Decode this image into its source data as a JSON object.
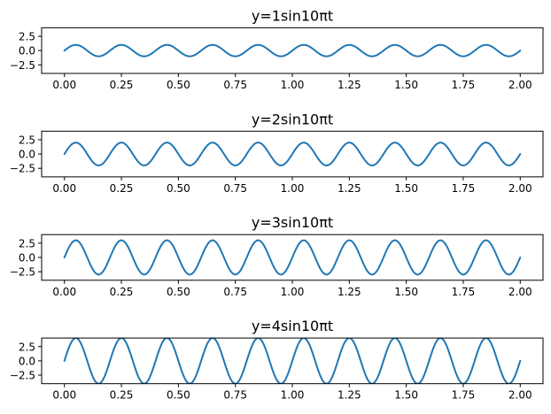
{
  "chart_data": [
    {
      "type": "line",
      "title": "y=1sin10πt",
      "series": [
        {
          "equation": "y = 1·sin(10πt)",
          "amplitude": 1,
          "angular_frequency": 31.4159,
          "x": [
            0,
            0.05,
            0.1,
            0.15,
            0.2,
            0.25,
            0.3,
            0.35,
            0.4,
            0.45,
            0.5,
            0.55,
            0.6,
            0.65,
            0.7,
            0.75,
            0.8,
            0.85,
            0.9,
            0.95,
            1.0,
            1.05,
            1.1,
            1.15,
            1.2,
            1.25,
            1.3,
            1.35,
            1.4,
            1.45,
            1.5,
            1.55,
            1.6,
            1.65,
            1.7,
            1.75,
            1.8,
            1.85,
            1.9,
            1.95,
            2.0
          ],
          "y": [
            0,
            1,
            0,
            -1,
            0,
            1,
            0,
            -1,
            0,
            1,
            0,
            -1,
            0,
            1,
            0,
            -1,
            0,
            1,
            0,
            -1,
            0,
            1,
            0,
            -1,
            0,
            1,
            0,
            -1,
            0,
            1,
            0,
            -1,
            0,
            1,
            0,
            -1,
            0,
            1,
            0,
            -1,
            0
          ],
          "color": "#1f77b4"
        }
      ],
      "xlim": [
        -0.1,
        2.1
      ],
      "ylim": [
        -4,
        4
      ],
      "xticks": [
        0.0,
        0.25,
        0.5,
        0.75,
        1.0,
        1.25,
        1.5,
        1.75,
        2.0
      ],
      "xtick_labels": [
        "0.00",
        "0.25",
        "0.50",
        "0.75",
        "1.00",
        "1.25",
        "1.50",
        "1.75",
        "2.00"
      ],
      "yticks": [
        2.5,
        0.0,
        -2.5
      ],
      "ytick_labels": [
        "2.5",
        "0.0",
        "−2.5"
      ],
      "grid": false,
      "xlabel": "",
      "ylabel": ""
    },
    {
      "type": "line",
      "title": "y=2sin10πt",
      "series": [
        {
          "equation": "y = 2·sin(10πt)",
          "amplitude": 2,
          "angular_frequency": 31.4159,
          "x": [
            0,
            0.05,
            0.1,
            0.15,
            0.2,
            0.25,
            0.3,
            0.35,
            0.4,
            0.45,
            0.5,
            0.55,
            0.6,
            0.65,
            0.7,
            0.75,
            0.8,
            0.85,
            0.9,
            0.95,
            1.0,
            1.05,
            1.1,
            1.15,
            1.2,
            1.25,
            1.3,
            1.35,
            1.4,
            1.45,
            1.5,
            1.55,
            1.6,
            1.65,
            1.7,
            1.75,
            1.8,
            1.85,
            1.9,
            1.95,
            2.0
          ],
          "y": [
            0,
            2,
            0,
            -2,
            0,
            2,
            0,
            -2,
            0,
            2,
            0,
            -2,
            0,
            2,
            0,
            -2,
            0,
            2,
            0,
            -2,
            0,
            2,
            0,
            -2,
            0,
            2,
            0,
            -2,
            0,
            2,
            0,
            -2,
            0,
            2,
            0,
            -2,
            0,
            2,
            0,
            -2,
            0
          ],
          "color": "#1f77b4"
        }
      ],
      "xlim": [
        -0.1,
        2.1
      ],
      "ylim": [
        -4,
        4
      ],
      "xticks": [
        0.0,
        0.25,
        0.5,
        0.75,
        1.0,
        1.25,
        1.5,
        1.75,
        2.0
      ],
      "xtick_labels": [
        "0.00",
        "0.25",
        "0.50",
        "0.75",
        "1.00",
        "1.25",
        "1.50",
        "1.75",
        "2.00"
      ],
      "yticks": [
        2.5,
        0.0,
        -2.5
      ],
      "ytick_labels": [
        "2.5",
        "0.0",
        "−2.5"
      ],
      "grid": false,
      "xlabel": "",
      "ylabel": ""
    },
    {
      "type": "line",
      "title": "y=3sin10πt",
      "series": [
        {
          "equation": "y = 3·sin(10πt)",
          "amplitude": 3,
          "angular_frequency": 31.4159,
          "x": [
            0,
            0.05,
            0.1,
            0.15,
            0.2,
            0.25,
            0.3,
            0.35,
            0.4,
            0.45,
            0.5,
            0.55,
            0.6,
            0.65,
            0.7,
            0.75,
            0.8,
            0.85,
            0.9,
            0.95,
            1.0,
            1.05,
            1.1,
            1.15,
            1.2,
            1.25,
            1.3,
            1.35,
            1.4,
            1.45,
            1.5,
            1.55,
            1.6,
            1.65,
            1.7,
            1.75,
            1.8,
            1.85,
            1.9,
            1.95,
            2.0
          ],
          "y": [
            0,
            3,
            0,
            -3,
            0,
            3,
            0,
            -3,
            0,
            3,
            0,
            -3,
            0,
            3,
            0,
            -3,
            0,
            3,
            0,
            -3,
            0,
            3,
            0,
            -3,
            0,
            3,
            0,
            -3,
            0,
            3,
            0,
            -3,
            0,
            3,
            0,
            -3,
            0,
            3,
            0,
            -3,
            0
          ],
          "color": "#1f77b4"
        }
      ],
      "xlim": [
        -0.1,
        2.1
      ],
      "ylim": [
        -4,
        4
      ],
      "xticks": [
        0.0,
        0.25,
        0.5,
        0.75,
        1.0,
        1.25,
        1.5,
        1.75,
        2.0
      ],
      "xtick_labels": [
        "0.00",
        "0.25",
        "0.50",
        "0.75",
        "1.00",
        "1.25",
        "1.50",
        "1.75",
        "2.00"
      ],
      "yticks": [
        2.5,
        0.0,
        -2.5
      ],
      "ytick_labels": [
        "2.5",
        "0.0",
        "−2.5"
      ],
      "grid": false,
      "xlabel": "",
      "ylabel": ""
    },
    {
      "type": "line",
      "title": "y=4sin10πt",
      "series": [
        {
          "equation": "y = 4·sin(10πt)",
          "amplitude": 4,
          "angular_frequency": 31.4159,
          "x": [
            0,
            0.05,
            0.1,
            0.15,
            0.2,
            0.25,
            0.3,
            0.35,
            0.4,
            0.45,
            0.5,
            0.55,
            0.6,
            0.65,
            0.7,
            0.75,
            0.8,
            0.85,
            0.9,
            0.95,
            1.0,
            1.05,
            1.1,
            1.15,
            1.2,
            1.25,
            1.3,
            1.35,
            1.4,
            1.45,
            1.5,
            1.55,
            1.6,
            1.65,
            1.7,
            1.75,
            1.8,
            1.85,
            1.9,
            1.95,
            2.0
          ],
          "y": [
            0,
            4,
            0,
            -4,
            0,
            4,
            0,
            -4,
            0,
            4,
            0,
            -4,
            0,
            4,
            0,
            -4,
            0,
            4,
            0,
            -4,
            0,
            4,
            0,
            -4,
            0,
            4,
            0,
            -4,
            0,
            4,
            0,
            -4,
            0,
            4,
            0,
            -4,
            0,
            4,
            0,
            -4,
            0
          ],
          "color": "#1f77b4"
        }
      ],
      "xlim": [
        -0.1,
        2.1
      ],
      "ylim": [
        -4,
        4
      ],
      "xticks": [
        0.0,
        0.25,
        0.5,
        0.75,
        1.0,
        1.25,
        1.5,
        1.75,
        2.0
      ],
      "xtick_labels": [
        "0.00",
        "0.25",
        "0.50",
        "0.75",
        "1.00",
        "1.25",
        "1.50",
        "1.75",
        "2.00"
      ],
      "yticks": [
        2.5,
        0.0,
        -2.5
      ],
      "ytick_labels": [
        "2.5",
        "0.0",
        "−2.5"
      ],
      "grid": false,
      "xlabel": "",
      "ylabel": ""
    }
  ]
}
